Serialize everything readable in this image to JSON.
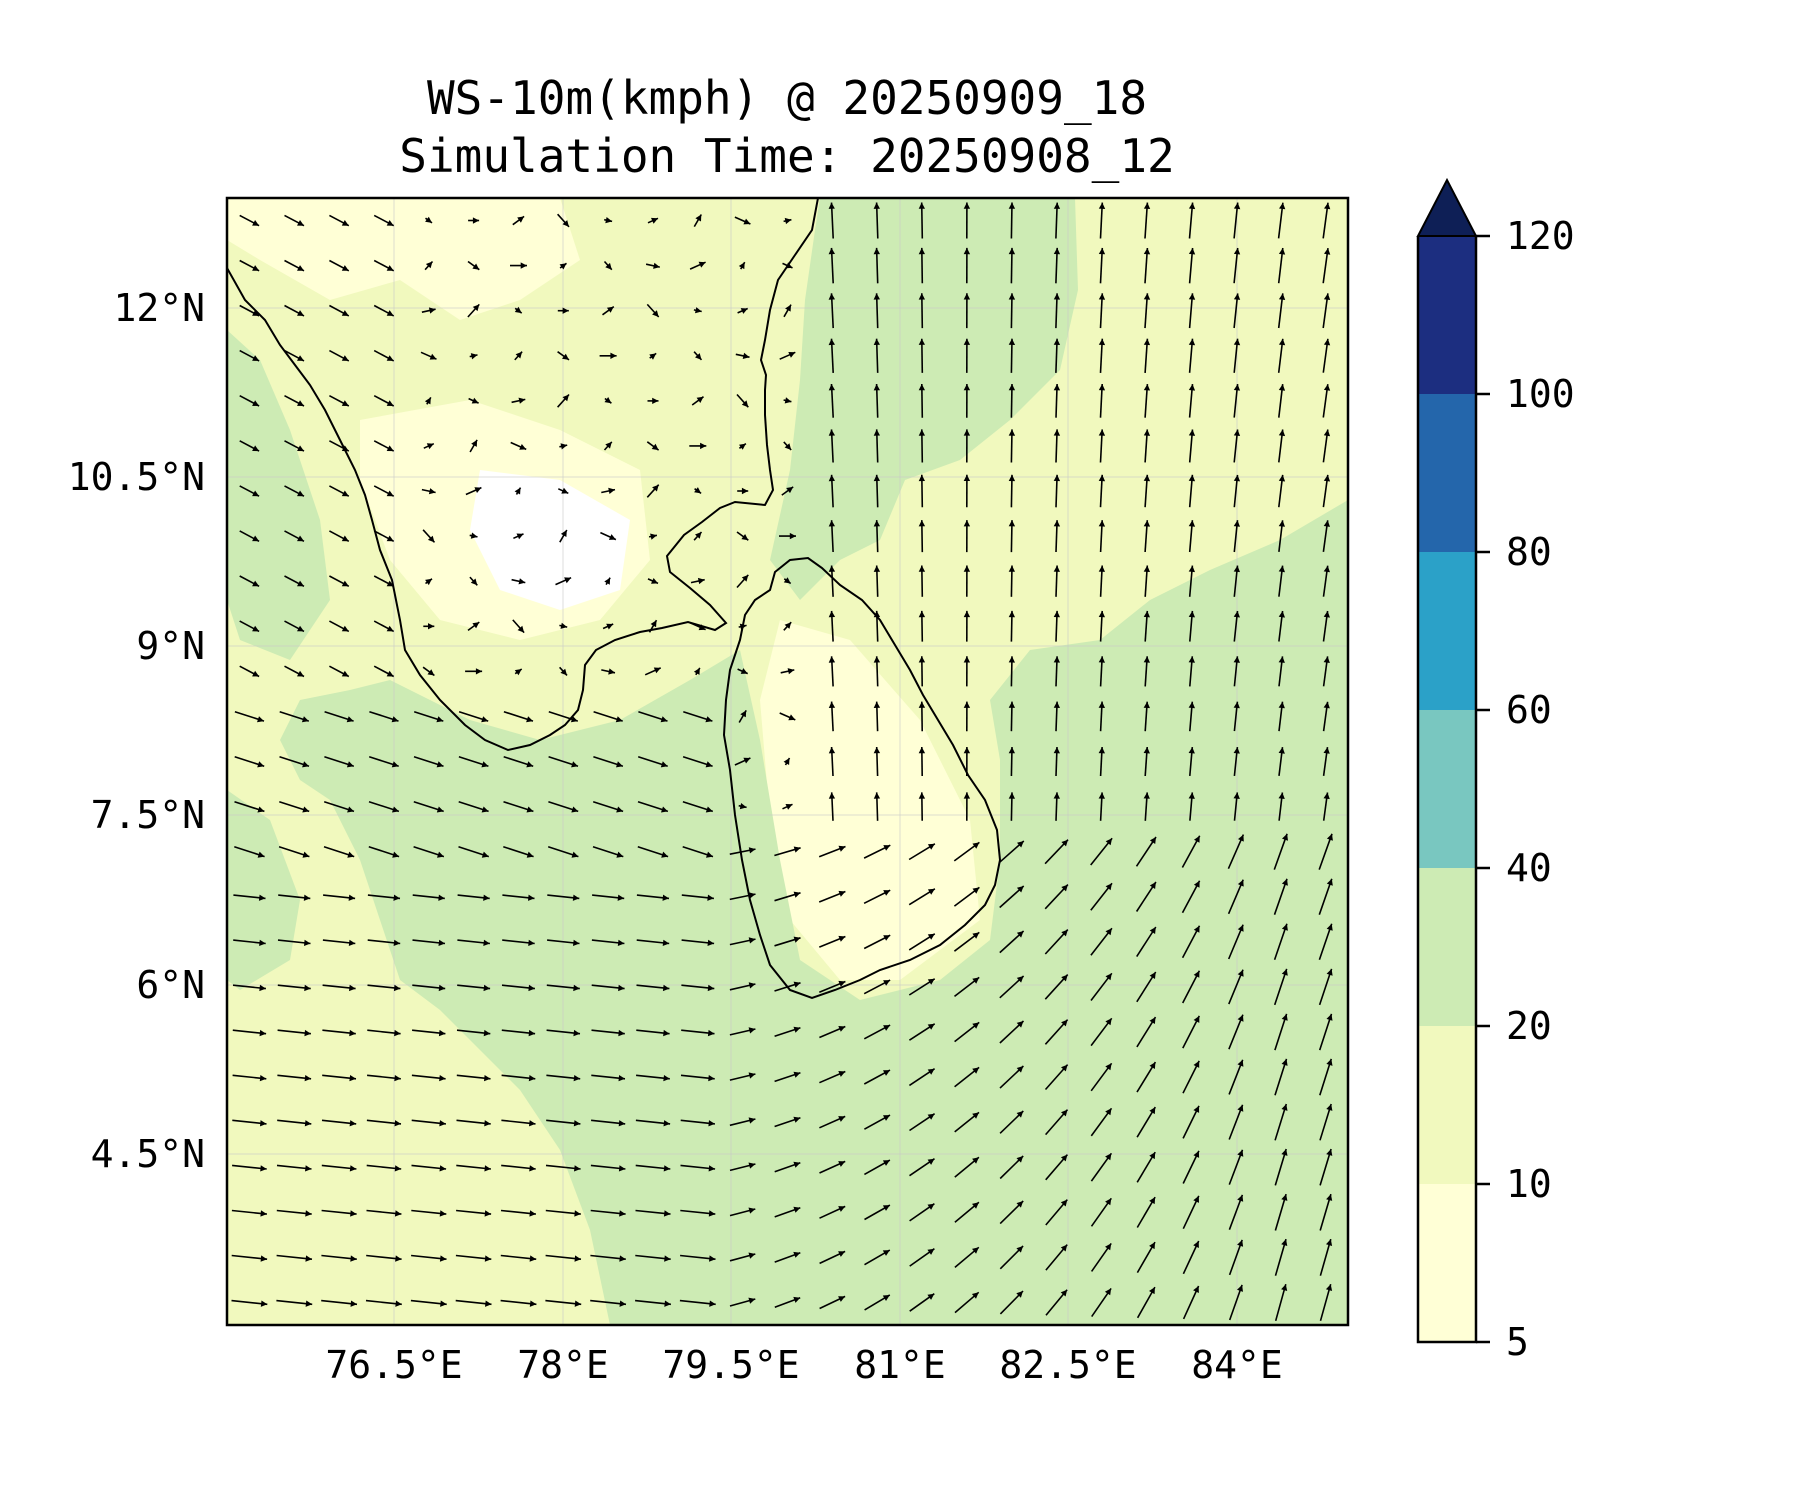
{
  "map": {
    "title_line1": "WS-10m(kmph) @ 20250909_18",
    "title_line2": "Simulation Time: 20250908_12",
    "lon_ticks": [
      "76.5°E",
      "78°E",
      "79.5°E",
      "81°E",
      "82.5°E",
      "84°E"
    ],
    "lat_ticks": [
      "12°N",
      "10.5°N",
      "9°N",
      "7.5°N",
      "6°N",
      "4.5°N"
    ],
    "extent": {
      "lon": [
        75.0,
        85.0
      ],
      "lat": [
        3.1,
        13.1
      ]
    },
    "colorbar": {
      "levels": [
        "5",
        "10",
        "20",
        "40",
        "60",
        "80",
        "100",
        "120"
      ],
      "colors": [
        "#ffffd6",
        "#f1f9be",
        "#cdebb4",
        "#79c7c0",
        "#2ba1c8",
        "#2466ab",
        "#1c2e80",
        "#0e1f56"
      ],
      "extend": "max"
    },
    "land_outline_color": "#000000",
    "arrow_color": "#000000"
  }
}
